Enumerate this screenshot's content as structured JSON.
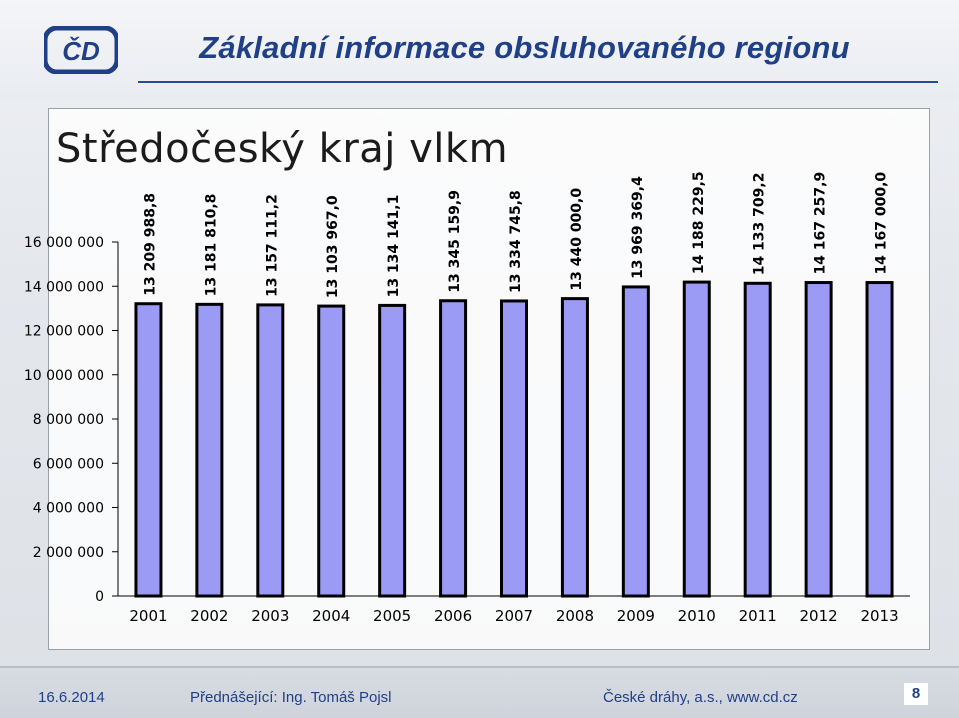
{
  "header": {
    "title": "Základní informace obsluhovaného regionu",
    "logo": "cd-logo"
  },
  "chart_data": {
    "type": "bar",
    "title": "Středočeský kraj vlkm",
    "xlabel": "",
    "ylabel": "",
    "categories": [
      "2001",
      "2002",
      "2003",
      "2004",
      "2005",
      "2006",
      "2007",
      "2008",
      "2009",
      "2010",
      "2011",
      "2012",
      "2013"
    ],
    "values": [
      13209988.8,
      13181810.8,
      13157111.2,
      13103967.0,
      13134141.1,
      13345159.9,
      13334745.8,
      13440000.0,
      13969369.4,
      14188229.5,
      14133709.2,
      14167257.9,
      14167000.0
    ],
    "data_labels": [
      "13 209 988,8",
      "13 181 810,8",
      "13 157 111,2",
      "13 103 967,0",
      "13 134 141,1",
      "13 345 159,9",
      "13 334 745,8",
      "13 440 000,0",
      "13 969 369,4",
      "14 188 229,5",
      "14 133 709,2",
      "14 167 257,9",
      "14 167 000,0"
    ],
    "y_ticks": [
      0,
      2000000,
      4000000,
      6000000,
      8000000,
      10000000,
      12000000,
      14000000,
      16000000
    ],
    "y_tick_labels": [
      "0",
      "2 000 000",
      "4 000 000",
      "6 000 000",
      "8 000 000",
      "10 000 000",
      "12 000 000",
      "14 000 000",
      "16 000 000"
    ],
    "ylim": [
      0,
      16000000
    ],
    "grid": false,
    "legend": "none",
    "colors": {
      "bar_fill": "#9b9bf5",
      "bar_stroke": "#000000"
    }
  },
  "footer": {
    "date": "16.6.2014",
    "presenter": "Přednášející: Ing. Tomáš Pojsl",
    "company": "České dráhy, a.s., www.cd.cz",
    "page": "8"
  }
}
